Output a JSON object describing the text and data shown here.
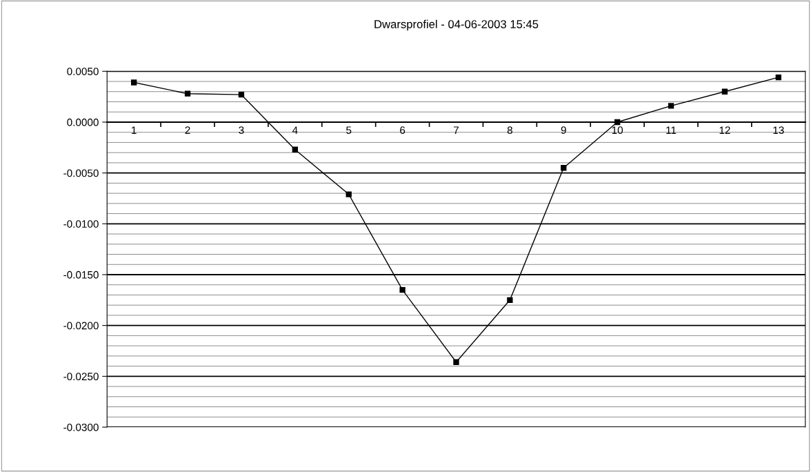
{
  "chart_data": {
    "type": "line",
    "title": "Dwarsprofiel - 04-06-2003 15:45",
    "categories": [
      "1",
      "2",
      "3",
      "4",
      "5",
      "6",
      "7",
      "8",
      "9",
      "10",
      "11",
      "12",
      "13"
    ],
    "series": [
      {
        "color": "#000000",
        "values": [
          0.0039,
          0.0028,
          0.0027,
          -0.0027,
          -0.0071,
          -0.0165,
          -0.0236,
          -0.0175,
          -0.0045,
          0.0,
          0.0016,
          0.003,
          0.0044
        ]
      }
    ],
    "ylim": [
      -0.03,
      0.005
    ],
    "yticks": [
      {
        "value": -0.03,
        "label": "-0.0300"
      },
      {
        "value": -0.029,
        "label": null
      },
      {
        "value": -0.028,
        "label": null
      },
      {
        "value": -0.027,
        "label": null
      },
      {
        "value": -0.026,
        "label": null
      },
      {
        "value": -0.025,
        "label": "-0.0250"
      },
      {
        "value": -0.024,
        "label": null
      },
      {
        "value": -0.023,
        "label": null
      },
      {
        "value": -0.022,
        "label": null
      },
      {
        "value": -0.021,
        "label": null
      },
      {
        "value": -0.02,
        "label": "-0.0200"
      },
      {
        "value": -0.019,
        "label": null
      },
      {
        "value": -0.018,
        "label": null
      },
      {
        "value": -0.017,
        "label": null
      },
      {
        "value": -0.016,
        "label": null
      },
      {
        "value": -0.015,
        "label": "-0.0150"
      },
      {
        "value": -0.014,
        "label": null
      },
      {
        "value": -0.013,
        "label": null
      },
      {
        "value": -0.012,
        "label": null
      },
      {
        "value": -0.011,
        "label": null
      },
      {
        "value": -0.01,
        "label": "-0.0100"
      },
      {
        "value": -0.009,
        "label": null
      },
      {
        "value": -0.008,
        "label": null
      },
      {
        "value": -0.007,
        "label": null
      },
      {
        "value": -0.006,
        "label": null
      },
      {
        "value": -0.005,
        "label": "-0.0050"
      },
      {
        "value": -0.004,
        "label": null
      },
      {
        "value": -0.003,
        "label": null
      },
      {
        "value": -0.002,
        "label": null
      },
      {
        "value": -0.001,
        "label": null
      },
      {
        "value": 0,
        "label": "0.0000"
      },
      {
        "value": 0.001,
        "label": null
      },
      {
        "value": 0.002,
        "label": null
      },
      {
        "value": 0.003,
        "label": null
      },
      {
        "value": 0.004,
        "label": null
      },
      {
        "value": 0.005,
        "label": "0.0050"
      }
    ],
    "grid": "y",
    "marker": "square",
    "line_style": "solid",
    "legend": false
  }
}
